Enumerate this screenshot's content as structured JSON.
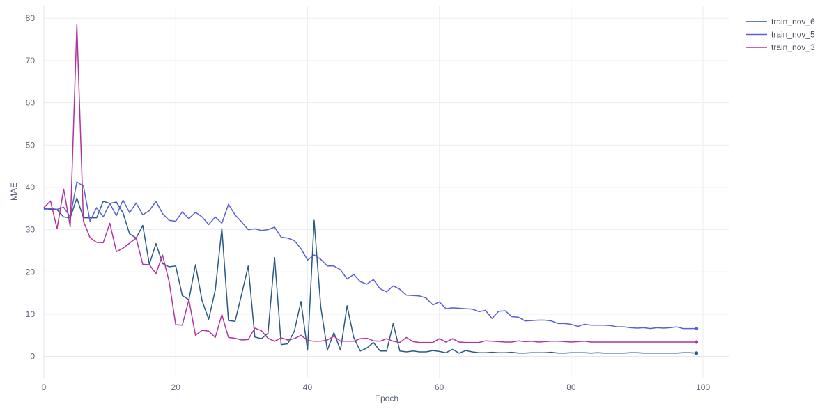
{
  "chart_data": {
    "type": "line",
    "xlabel": "Epoch",
    "ylabel": "MAE",
    "xlim": [
      0,
      104
    ],
    "ylim": [
      -5,
      83
    ],
    "xticks": [
      0,
      20,
      40,
      60,
      80,
      100
    ],
    "yticks": [
      0,
      10,
      20,
      30,
      40,
      50,
      60,
      70,
      80
    ],
    "grid": true,
    "legend_position": "top-right",
    "x": [
      0,
      1,
      2,
      3,
      4,
      5,
      6,
      7,
      8,
      9,
      10,
      11,
      12,
      13,
      14,
      15,
      16,
      17,
      18,
      19,
      20,
      21,
      22,
      23,
      24,
      25,
      26,
      27,
      28,
      29,
      30,
      31,
      32,
      33,
      34,
      35,
      36,
      37,
      38,
      39,
      40,
      41,
      42,
      43,
      44,
      45,
      46,
      47,
      48,
      49,
      50,
      51,
      52,
      53,
      54,
      55,
      56,
      57,
      58,
      59,
      60,
      61,
      62,
      63,
      64,
      65,
      66,
      67,
      68,
      69,
      70,
      71,
      72,
      73,
      74,
      75,
      76,
      77,
      78,
      79,
      80,
      81,
      82,
      83,
      84,
      85,
      86,
      87,
      88,
      89,
      90,
      91,
      92,
      93,
      94,
      95,
      96,
      97,
      98,
      99
    ],
    "series": [
      {
        "name": "train_nov_6",
        "color": "#2a5a83",
        "values": [
          35,
          34.8,
          34.7,
          33,
          32.8,
          37.5,
          32.8,
          32.8,
          32.8,
          36.7,
          36.2,
          36.5,
          34,
          29,
          28,
          31,
          21.8,
          26.7,
          22,
          21.2,
          21.4,
          14.4,
          13.4,
          21.7,
          13.2,
          8.8,
          15.7,
          30.3,
          8.5,
          8.3,
          14.7,
          21.4,
          4.6,
          4.2,
          5.5,
          23.4,
          2.8,
          3,
          6,
          13,
          1.5,
          32.2,
          11.8,
          1.5,
          5.6,
          1.5,
          12,
          4.5,
          1.3,
          2,
          3.3,
          1.3,
          1.3,
          7.8,
          1.3,
          1.1,
          1.3,
          1.1,
          1.1,
          1.4,
          1.2,
          0.9,
          1.7,
          0.8,
          1.4,
          1.1,
          0.9,
          0.9,
          1,
          0.9,
          0.9,
          1,
          0.8,
          0.8,
          0.9,
          0.9,
          0.9,
          1,
          0.8,
          0.8,
          0.9,
          0.9,
          0.9,
          0.8,
          0.9,
          0.8,
          0.8,
          0.8,
          0.8,
          0.9,
          0.9,
          0.8,
          0.8,
          0.8,
          0.8,
          0.8,
          0.8,
          0.9,
          0.9,
          0.8
        ]
      },
      {
        "name": "train_nov_5",
        "color": "#5a5fd6",
        "values": [
          34.8,
          35,
          34.8,
          35.3,
          33,
          41.3,
          40.3,
          32,
          35.2,
          33,
          36.2,
          33.3,
          37,
          34,
          36.3,
          33.5,
          34.5,
          36.7,
          33.8,
          32.2,
          32,
          34.2,
          32.6,
          34.1,
          33,
          31.2,
          33,
          31.5,
          36,
          33.5,
          31.8,
          30,
          30.2,
          29.8,
          30,
          30.6,
          28.2,
          28,
          27.4,
          25.5,
          22.8,
          24,
          23,
          21.4,
          21.4,
          20.5,
          18.3,
          19.4,
          17.7,
          17.1,
          18.2,
          16,
          15.3,
          16.7,
          15.9,
          14.5,
          14.4,
          14.3,
          13.8,
          12.2,
          12.9,
          11.3,
          11.5,
          11.4,
          11.3,
          11.2,
          10.6,
          10.9,
          9,
          10.7,
          10.8,
          9.4,
          9.3,
          8.4,
          8.5,
          8.6,
          8.6,
          8.4,
          7.8,
          7.8,
          7.6,
          7.1,
          7.6,
          7.4,
          7.4,
          7.4,
          7.3,
          7,
          7,
          6.8,
          6.7,
          6.8,
          6.6,
          6.8,
          6.7,
          6.8,
          7,
          6.6,
          6.6,
          6.6
        ]
      },
      {
        "name": "train_nov_3",
        "color": "#b0349e",
        "values": [
          35.2,
          36.8,
          30.2,
          39.6,
          30.7,
          78.5,
          32,
          28.1,
          27,
          26.9,
          31.5,
          24.8,
          25.6,
          26.8,
          28,
          21.8,
          21.7,
          19.6,
          24,
          17.7,
          7.5,
          7.4,
          13.4,
          5,
          6.2,
          6,
          4.5,
          9.9,
          4.5,
          4.3,
          3.9,
          4,
          6.7,
          6.1,
          4.3,
          3.6,
          4.4,
          3.9,
          4.2,
          5,
          3.8,
          3.6,
          3.6,
          3.9,
          4.8,
          3.6,
          3.6,
          3.6,
          4.2,
          4.3,
          3.7,
          3.6,
          4.2,
          3.6,
          3.3,
          4.5,
          3.5,
          3.3,
          3.3,
          3.3,
          4.2,
          3.4,
          4.2,
          3.4,
          3.3,
          3.3,
          3.3,
          3.7,
          3.6,
          3.5,
          3.4,
          3.4,
          3.7,
          3.5,
          3.6,
          3.4,
          3.5,
          3.6,
          3.6,
          3.5,
          3.4,
          3.5,
          3.6,
          3.4,
          3.4,
          3.4,
          3.4,
          3.4,
          3.4,
          3.4,
          3.4,
          3.4,
          3.4,
          3.4,
          3.4,
          3.4,
          3.4,
          3.4,
          3.4,
          3.4
        ]
      }
    ]
  }
}
